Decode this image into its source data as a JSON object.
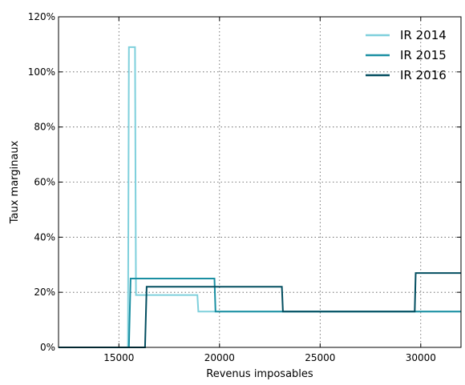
{
  "chart_data": {
    "type": "line",
    "xlabel": "Revenus imposables",
    "ylabel": "Taux marginaux",
    "xlim": [
      12000,
      32000
    ],
    "ylim": [
      0,
      120
    ],
    "x_ticks": [
      15000,
      20000,
      25000,
      30000
    ],
    "y_ticks": [
      0,
      20,
      40,
      60,
      80,
      100,
      120
    ],
    "y_tick_labels": [
      "0%",
      "20%",
      "40%",
      "60%",
      "80%",
      "100%",
      "120%"
    ],
    "grid": true,
    "legend_position": "top-right",
    "series": [
      {
        "name": "IR 2014",
        "color": "#7fd0dc",
        "points": [
          [
            12000,
            0
          ],
          [
            15450,
            0
          ],
          [
            15500,
            109
          ],
          [
            15800,
            109
          ],
          [
            15850,
            19
          ],
          [
            18900,
            19
          ],
          [
            18950,
            13
          ],
          [
            32000,
            13
          ]
        ]
      },
      {
        "name": "IR 2015",
        "color": "#1a8fa2",
        "points": [
          [
            12000,
            0
          ],
          [
            15500,
            0
          ],
          [
            15580,
            25
          ],
          [
            19750,
            25
          ],
          [
            19800,
            13
          ],
          [
            32000,
            13
          ]
        ]
      },
      {
        "name": "IR 2016",
        "color": "#034e60",
        "points": [
          [
            12000,
            0
          ],
          [
            16300,
            0
          ],
          [
            16380,
            22
          ],
          [
            23100,
            22
          ],
          [
            23150,
            13
          ],
          [
            29700,
            13
          ],
          [
            29750,
            27
          ],
          [
            32000,
            27
          ]
        ]
      }
    ]
  }
}
